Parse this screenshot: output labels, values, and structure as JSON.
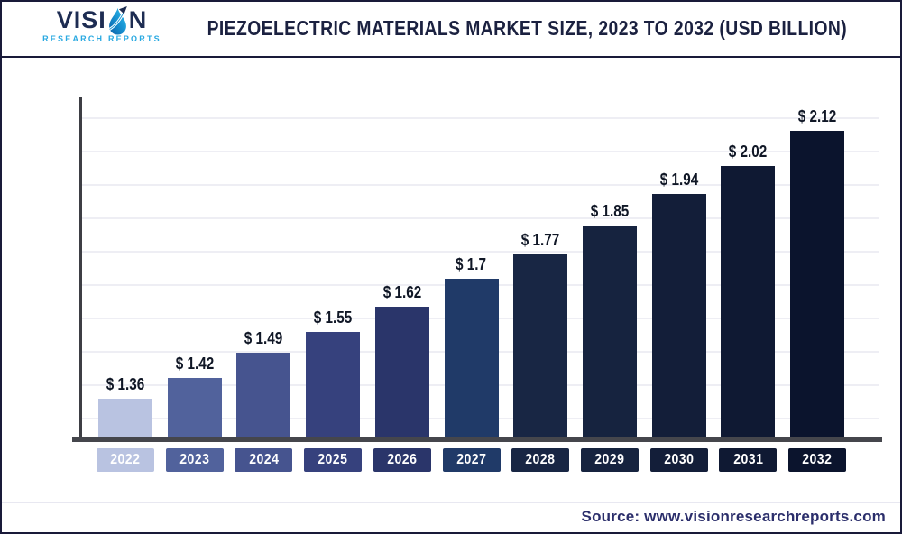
{
  "header": {
    "logo": {
      "name_prefix": "VISI",
      "name_suffix": "N",
      "subtitle": "RESEARCH REPORTS",
      "navy": "#1d2c52",
      "blue": "#29a9e1"
    },
    "title": "PIEZOELECTRIC MATERIALS MARKET SIZE, 2023 TO 2032 (USD BILLION)"
  },
  "footer": {
    "source": "Source: www.visionresearchreports.com"
  },
  "chart_data": {
    "type": "bar",
    "title": "Piezoelectric Materials Market Size, 2023 to 2032 (USD Billion)",
    "categories": [
      "2022",
      "2023",
      "2024",
      "2025",
      "2026",
      "2027",
      "2028",
      "2029",
      "2030",
      "2031",
      "2032"
    ],
    "values": [
      1.36,
      1.42,
      1.49,
      1.55,
      1.62,
      1.7,
      1.77,
      1.85,
      1.94,
      2.02,
      2.12
    ],
    "value_labels": [
      "$ 1.36",
      "$ 1.42",
      "$ 1.49",
      "$ 1.55",
      "$ 1.62",
      "$ 1.7",
      "$ 1.77",
      "$ 1.85",
      "$ 1.94",
      "$ 2.02",
      "$ 2.12"
    ],
    "bar_colors": [
      "#b9c3e1",
      "#51629c",
      "#46548f",
      "#36417d",
      "#2a356a",
      "#203a68",
      "#182644",
      "#16233f",
      "#131e39",
      "#0f1933",
      "#0b142d"
    ],
    "unit": "USD Billion",
    "ylim": [
      1.25,
      2.13
    ],
    "grid": "horizontal-light",
    "gridline_count": 10,
    "legend": "none",
    "xlabel": "",
    "ylabel": ""
  }
}
